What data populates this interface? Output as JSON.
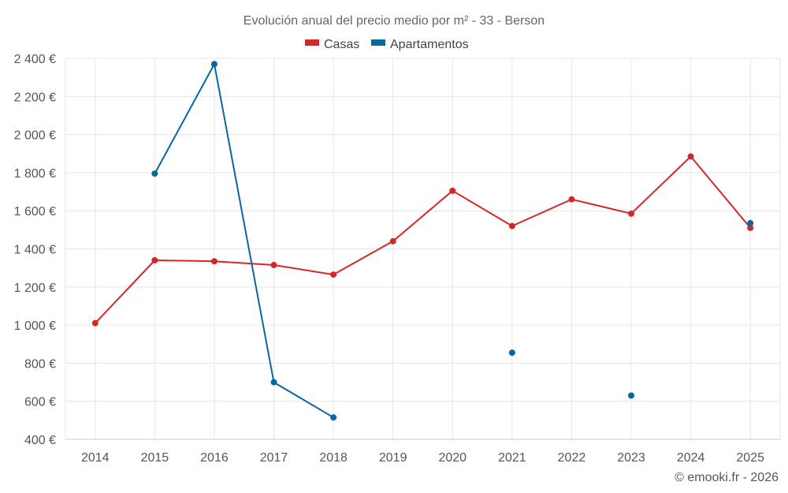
{
  "chart_data": {
    "type": "line",
    "title": "Evolución anual del precio medio por m² - 33 - Berson",
    "categories": [
      "2014",
      "2015",
      "2016",
      "2017",
      "2018",
      "2019",
      "2020",
      "2021",
      "2022",
      "2023",
      "2024",
      "2025"
    ],
    "ylim": [
      400,
      2400
    ],
    "yticks": [
      400,
      600,
      800,
      1000,
      1200,
      1400,
      1600,
      1800,
      2000,
      2200,
      2400
    ],
    "ytick_labels": [
      "400 €",
      "600 €",
      "800 €",
      "1 000 €",
      "1 200 €",
      "1 400 €",
      "1 600 €",
      "1 800 €",
      "2 000 €",
      "2 200 €",
      "2 400 €"
    ],
    "grid": true,
    "legend_position": "top-center",
    "series": [
      {
        "name": "Casas",
        "color": "#d62728",
        "values": [
          1010,
          1340,
          1335,
          1315,
          1265,
          1440,
          1705,
          1520,
          1660,
          1585,
          1885,
          1510
        ]
      },
      {
        "name": "Apartamentos",
        "color": "#07689f",
        "values": [
          null,
          1795,
          2370,
          700,
          515,
          null,
          null,
          855,
          null,
          630,
          null,
          1535
        ]
      }
    ],
    "credit": "© emooki.fr - 2026"
  }
}
